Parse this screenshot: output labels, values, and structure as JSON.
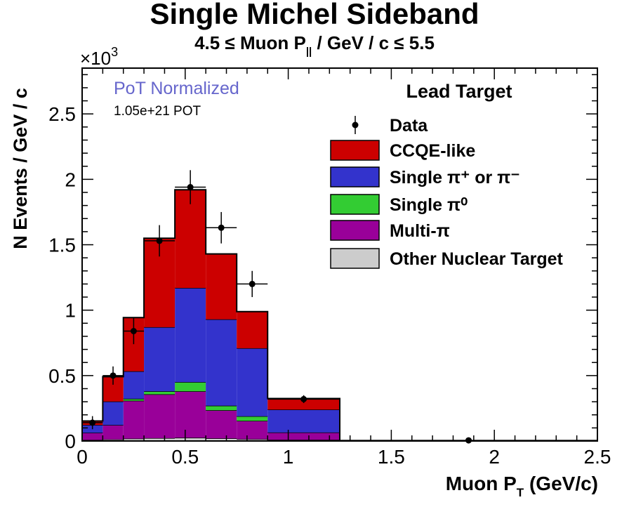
{
  "chart_data": {
    "type": "stacked-histogram",
    "title": "Single Michel Sideband",
    "subtitle_left": "4.5 ≤ Muon P",
    "subtitle_sub": "||",
    "subtitle_right": " / GeV / c ≤ 5.5",
    "xlabel_main": "Muon P",
    "xlabel_sub": "T",
    "xlabel_unit": " (GeV/c)",
    "ylabel": "N Events / GeV / c",
    "y_multiplier": "×10",
    "y_multiplier_exp": "3",
    "xlim": [
      0,
      2.5
    ],
    "ylim": [
      0,
      2.85
    ],
    "xticks": [
      0,
      0.5,
      1,
      1.5,
      2,
      2.5
    ],
    "xtick_labels": [
      "0",
      "0.5",
      "1",
      "1.5",
      "2",
      "2.5"
    ],
    "yticks": [
      0,
      0.5,
      1,
      1.5,
      2,
      2.5
    ],
    "ytick_labels": [
      "0",
      "0.5",
      "1",
      "1.5",
      "2",
      "2.5"
    ],
    "bin_edges": [
      0,
      0.1,
      0.2,
      0.3,
      0.45,
      0.6,
      0.75,
      0.9,
      1.25,
      2.5
    ],
    "series": [
      {
        "name": "Other Nuclear Target",
        "color": "#cccccc",
        "values": [
          0.008,
          0.012,
          0.018,
          0.022,
          0.025,
          0.02,
          0.014,
          0.009,
          0.0
        ]
      },
      {
        "name": "Multi-π",
        "color": "#990099",
        "values": [
          0.055,
          0.11,
          0.29,
          0.335,
          0.355,
          0.215,
          0.14,
          0.056,
          0.0
        ]
      },
      {
        "name": "Single π⁰",
        "color": "#33cc33",
        "values": [
          0.0,
          0.0,
          0.015,
          0.023,
          0.07,
          0.035,
          0.035,
          0.0,
          0.0
        ]
      },
      {
        "name": "Single π⁺ or π⁻",
        "color": "#3333cc",
        "values": [
          0.06,
          0.18,
          0.21,
          0.49,
          0.72,
          0.66,
          0.52,
          0.175,
          0.0
        ]
      },
      {
        "name": "CCQE-like",
        "color": "#cc0000",
        "values": [
          0.03,
          0.19,
          0.41,
          0.68,
          0.75,
          0.5,
          0.28,
          0.085,
          0.0
        ]
      }
    ],
    "data_points": [
      {
        "x": 0.05,
        "y": 0.14,
        "xerr": 0.05,
        "yerr": 0.05
      },
      {
        "x": 0.15,
        "y": 0.5,
        "xerr": 0.05,
        "yerr": 0.07
      },
      {
        "x": 0.25,
        "y": 0.84,
        "xerr": 0.05,
        "yerr": 0.1
      },
      {
        "x": 0.375,
        "y": 1.53,
        "xerr": 0.075,
        "yerr": 0.12
      },
      {
        "x": 0.525,
        "y": 1.94,
        "xerr": 0.075,
        "yerr": 0.13
      },
      {
        "x": 0.675,
        "y": 1.63,
        "xerr": 0.075,
        "yerr": 0.12
      },
      {
        "x": 0.825,
        "y": 1.2,
        "xerr": 0.075,
        "yerr": 0.1
      },
      {
        "x": 1.075,
        "y": 0.32,
        "xerr": 0.175,
        "yerr": 0.03
      },
      {
        "x": 1.875,
        "y": 0.005,
        "xerr": 0.625,
        "yerr": 0.004
      }
    ],
    "annotation_pot_label": "PoT Normalized",
    "annotation_pot_color": "#6666cc",
    "annotation_pot_value": "1.05e+21 POT",
    "legend_header": "Lead Target",
    "legend": [
      {
        "label": "Data",
        "kind": "marker",
        "color": "#000000"
      },
      {
        "label": "CCQE-like",
        "kind": "box",
        "color": "#cc0000"
      },
      {
        "label": "Single π⁺ or π⁻",
        "kind": "box",
        "color": "#3333cc"
      },
      {
        "label": "Single π⁰",
        "kind": "box",
        "color": "#33cc33"
      },
      {
        "label": "Multi-π",
        "kind": "box",
        "color": "#990099"
      },
      {
        "label": "Other Nuclear Target",
        "kind": "box",
        "color": "#cccccc"
      }
    ],
    "legend_position": "top-right"
  }
}
